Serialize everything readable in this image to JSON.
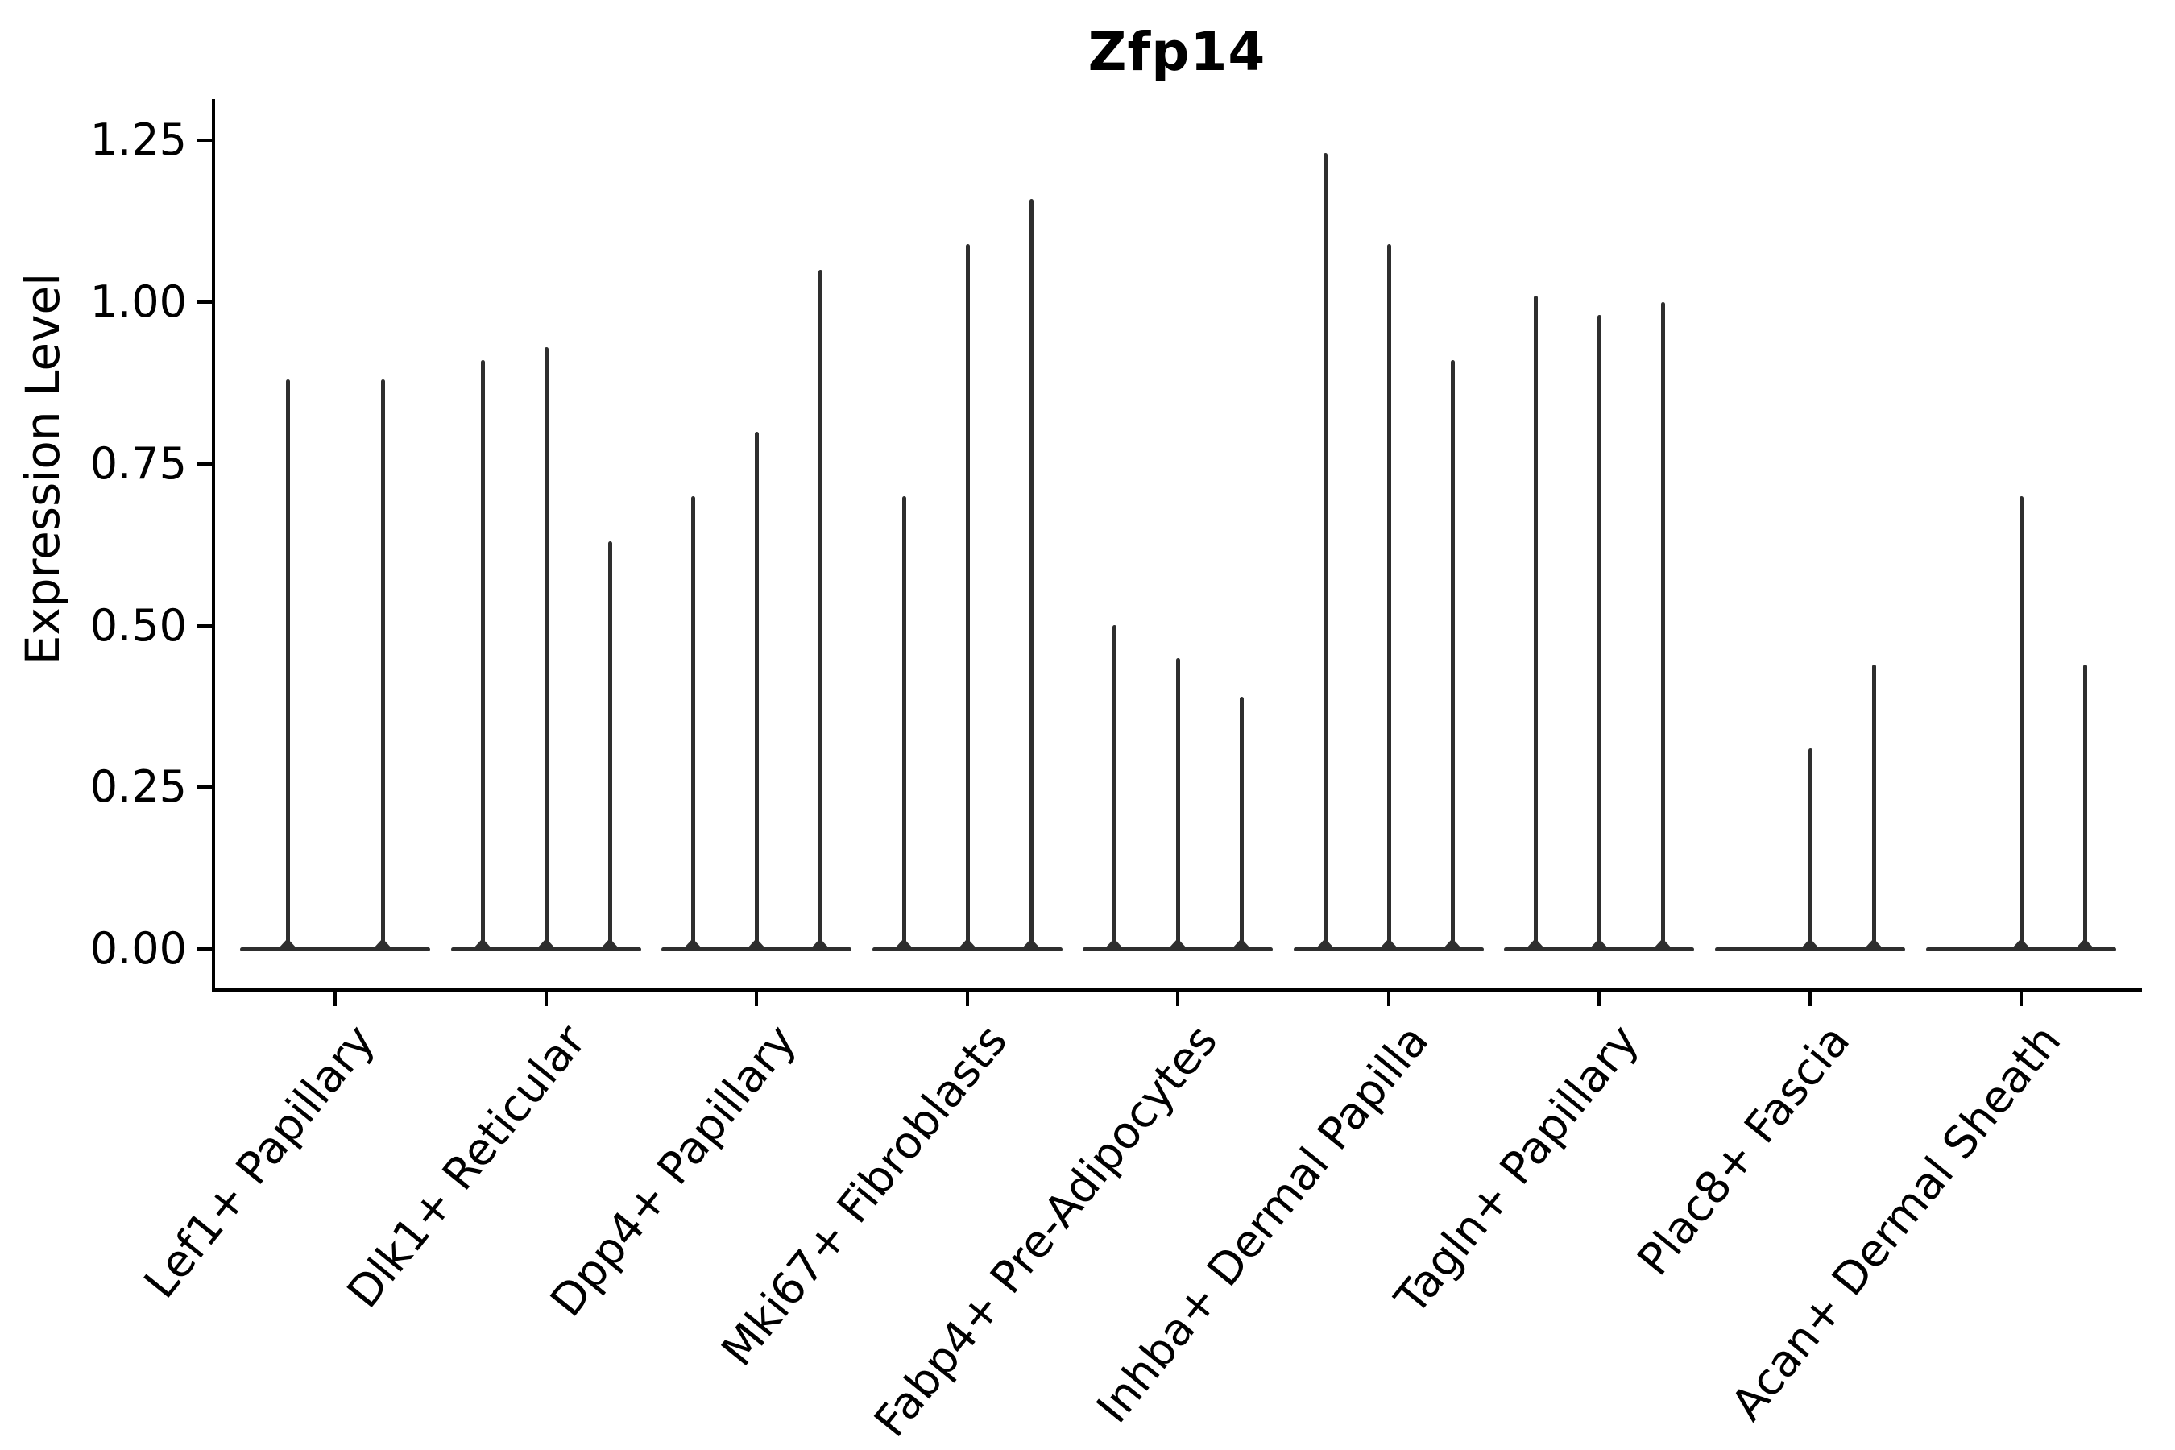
{
  "title": "Zfp14",
  "axis": {
    "ylabel": "Expression Level"
  },
  "chart_data": {
    "type": "violin",
    "title": "Zfp14",
    "xlabel": "",
    "ylabel": "Expression Level",
    "ylim": [
      -0.06,
      1.31
    ],
    "yticks": [
      0,
      0.25,
      0.5,
      0.75,
      1.0,
      1.25
    ],
    "ytick_labels": [
      "0.00",
      "0.25",
      "0.50",
      "0.75",
      "1.00",
      "1.25"
    ],
    "grid": false,
    "legend": "none",
    "style": "needle-thin violins (near-zero width bodies) in dark gray on white, grouped 2-3 violins per category with a flat baseline bar at y=0 under each group; x tick labels rotated ~51deg, anchored right",
    "categories": [
      "Lef1+ Papillary",
      "Dlk1+ Reticular",
      "Dpp4+ Papillary",
      "Mki67+ Fibroblasts",
      "Fabp4+ Pre-Adipocytes",
      "Inhba+ Dermal Papilla",
      "Tagln+ Papillary",
      "Plac8+ Fascia",
      "Acan+ Dermal Sheath"
    ],
    "groups": [
      {
        "category": "Lef1+ Papillary",
        "violin_maxima": [
          0.88,
          0.88
        ]
      },
      {
        "category": "Dlk1+ Reticular",
        "violin_maxima": [
          0.91,
          0.93,
          0.63
        ]
      },
      {
        "category": "Dpp4+ Papillary",
        "violin_maxima": [
          0.7,
          0.8,
          1.05
        ]
      },
      {
        "category": "Mki67+ Fibroblasts",
        "violin_maxima": [
          0.7,
          1.09,
          1.16
        ]
      },
      {
        "category": "Fabp4+ Pre-Adipocytes",
        "violin_maxima": [
          0.5,
          0.45,
          0.39
        ]
      },
      {
        "category": "Inhba+ Dermal Papilla",
        "violin_maxima": [
          1.23,
          1.09,
          0.91
        ]
      },
      {
        "category": "Tagln+ Papillary",
        "violin_maxima": [
          1.01,
          0.98,
          1.0
        ]
      },
      {
        "category": "Plac8+ Fascia",
        "violin_maxima": [
          0.0,
          0.31,
          0.44
        ]
      },
      {
        "category": "Acan+ Dermal Sheath",
        "violin_maxima": [
          0.0,
          0.7,
          0.44
        ]
      }
    ]
  }
}
